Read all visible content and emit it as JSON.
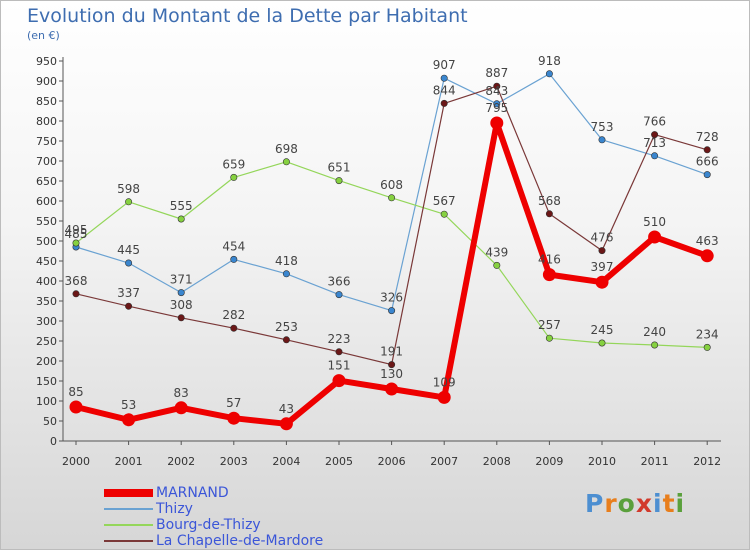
{
  "title": "Evolution du Montant de la Dette par Habitant",
  "unit": "(en €)",
  "brand": {
    "text": "Proxiti",
    "colors": [
      "#4d8fd1",
      "#e87e1c",
      "#5aa03c",
      "#d23a2c",
      "#4d8fd1",
      "#e87e1c",
      "#5aa03c"
    ]
  },
  "chart_data": {
    "type": "line",
    "title": "Evolution du Montant de la Dette par Habitant",
    "ylabel": "(en €)",
    "xlabel": "",
    "ylim": [
      0,
      950
    ],
    "yticks": [
      0,
      50,
      100,
      150,
      200,
      250,
      300,
      350,
      400,
      450,
      500,
      550,
      600,
      650,
      700,
      750,
      800,
      850,
      900,
      950
    ],
    "grid": false,
    "legend": "bottom-left",
    "x": [
      "2000",
      "2001",
      "2002",
      "2003",
      "2004",
      "2005",
      "2006",
      "2007",
      "2008",
      "2009",
      "2010",
      "2011",
      "2012"
    ],
    "series": [
      {
        "name": "MARNAND",
        "color": "#ee0000",
        "marker": "#ee0000",
        "thick": true,
        "values": [
          85,
          53,
          83,
          57,
          43,
          151,
          130,
          109,
          795,
          416,
          397,
          510,
          463
        ]
      },
      {
        "name": "Thizy",
        "color": "#6aa2d2",
        "marker": "#3a86cf",
        "thick": false,
        "values": [
          485,
          445,
          371,
          454,
          418,
          366,
          326,
          907,
          843,
          918,
          753,
          713,
          666
        ]
      },
      {
        "name": "Bourg-de-Thizy",
        "color": "#94d65a",
        "marker": "#86d140",
        "thick": false,
        "values": [
          495,
          598,
          555,
          659,
          698,
          651,
          608,
          567,
          439,
          257,
          245,
          240,
          234
        ]
      },
      {
        "name": "La Chapelle-de-Mardore",
        "color": "#7a3838",
        "marker": "#6b1717",
        "thick": false,
        "values": [
          368,
          337,
          308,
          282,
          253,
          223,
          191,
          844,
          887,
          568,
          476,
          766,
          728
        ]
      }
    ]
  }
}
